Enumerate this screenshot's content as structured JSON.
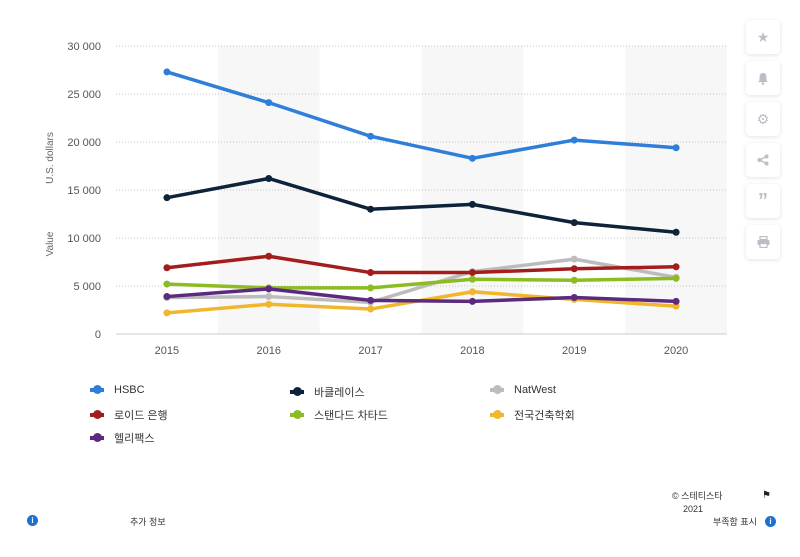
{
  "chart_data": {
    "type": "line",
    "x": [
      "2015",
      "2016",
      "2017",
      "2018",
      "2019",
      "2020"
    ],
    "ylabel": "Value",
    "ylabel_unit": "U.S. dollars",
    "yticks": [
      "30 000",
      "25 000",
      "20 000",
      "15 000",
      "10 000",
      "5 000",
      "0"
    ],
    "ylim": [
      0,
      30000
    ],
    "grid": "horizontal dotted",
    "series": [
      {
        "name": "HSBC",
        "color": "#2f7ed8",
        "values": [
          27300,
          24100,
          20600,
          18300,
          20200,
          19400
        ]
      },
      {
        "name": "바클레이스",
        "color": "#0d233a",
        "values": [
          14200,
          16200,
          13000,
          13500,
          11600,
          10600
        ]
      },
      {
        "name": "NatWest",
        "color": "#bcbcbc",
        "values": [
          3800,
          3900,
          3300,
          6500,
          7800,
          5900
        ]
      },
      {
        "name": "로이드 은행",
        "color": "#a31d1d",
        "values": [
          6900,
          8100,
          6400,
          6400,
          6800,
          7000
        ]
      },
      {
        "name": "스탠다드 차타드",
        "color": "#8bbc21",
        "values": [
          5200,
          4800,
          4800,
          5700,
          5600,
          5800
        ]
      },
      {
        "name": "전국건축학회",
        "color": "#f0b72d",
        "values": [
          2200,
          3100,
          2600,
          4400,
          3600,
          2900
        ]
      },
      {
        "name": "헬리팩스",
        "color": "#5b2a7e",
        "values": [
          3900,
          4700,
          3500,
          3400,
          3800,
          3400
        ]
      }
    ]
  },
  "footer": {
    "copyright": "© 스테티스타",
    "year": "2021",
    "more_info": "추가 정보",
    "show_source": "부족함 표시"
  },
  "sidebar_icons": [
    "star-icon",
    "bell-icon",
    "gear-icon",
    "share-icon",
    "quote-icon",
    "print-icon"
  ]
}
